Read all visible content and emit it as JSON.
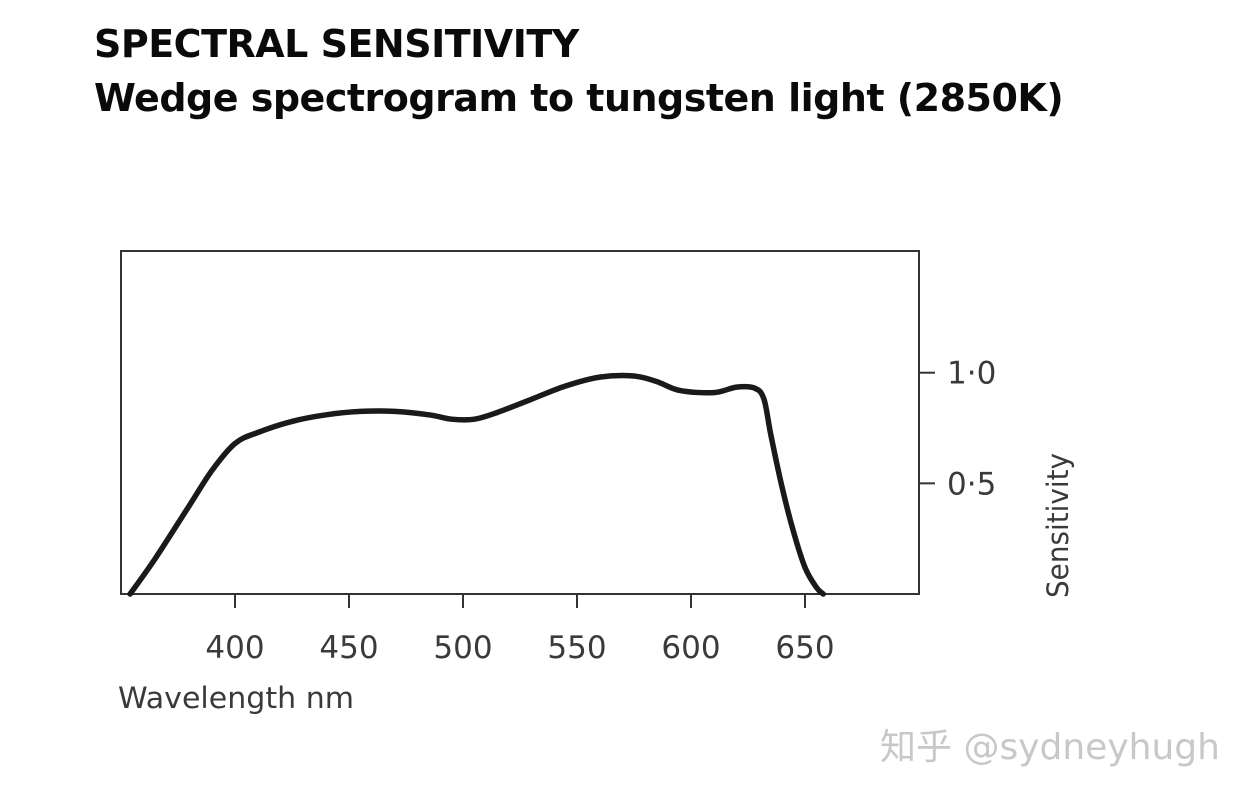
{
  "title": "SPECTRAL SENSITIVITY",
  "subtitle": "Wedge spectrogram to tungsten light (2850K)",
  "watermark": "知乎 @sydneyhugh",
  "colors": {
    "line": "#1a1a1a",
    "frame": "#333333",
    "text": "#3a3a3a"
  },
  "chart_data": {
    "type": "line",
    "title": "SPECTRAL SENSITIVITY",
    "subtitle": "Wedge spectrogram to tungsten light (2850K)",
    "xlabel": "Wavelength nm",
    "ylabel": "Sensitivity",
    "xlim": [
      350,
      700
    ],
    "ylim": [
      0,
      1.55
    ],
    "xticks": [
      400,
      450,
      500,
      550,
      600,
      650
    ],
    "xtick_labels": [
      "400",
      "450",
      "500",
      "550",
      "600",
      "650"
    ],
    "yticks": [
      0.5,
      1.0
    ],
    "ytick_labels": [
      "0·5",
      "1·0"
    ],
    "y_axis_side": "right",
    "grid": false,
    "series": [
      {
        "name": "Sensitivity",
        "x": [
          354,
          365,
          380,
          390,
          400,
          410,
          425,
          440,
          455,
          470,
          485,
          495,
          505,
          515,
          530,
          545,
          560,
          575,
          585,
          595,
          610,
          620,
          628,
          632,
          635,
          640,
          645,
          650,
          655,
          658
        ],
        "y": [
          0.0,
          0.16,
          0.4,
          0.56,
          0.68,
          0.73,
          0.78,
          0.81,
          0.825,
          0.825,
          0.81,
          0.79,
          0.79,
          0.82,
          0.88,
          0.94,
          0.98,
          0.985,
          0.96,
          0.92,
          0.91,
          0.935,
          0.93,
          0.88,
          0.72,
          0.48,
          0.28,
          0.12,
          0.03,
          0.0
        ]
      }
    ]
  }
}
